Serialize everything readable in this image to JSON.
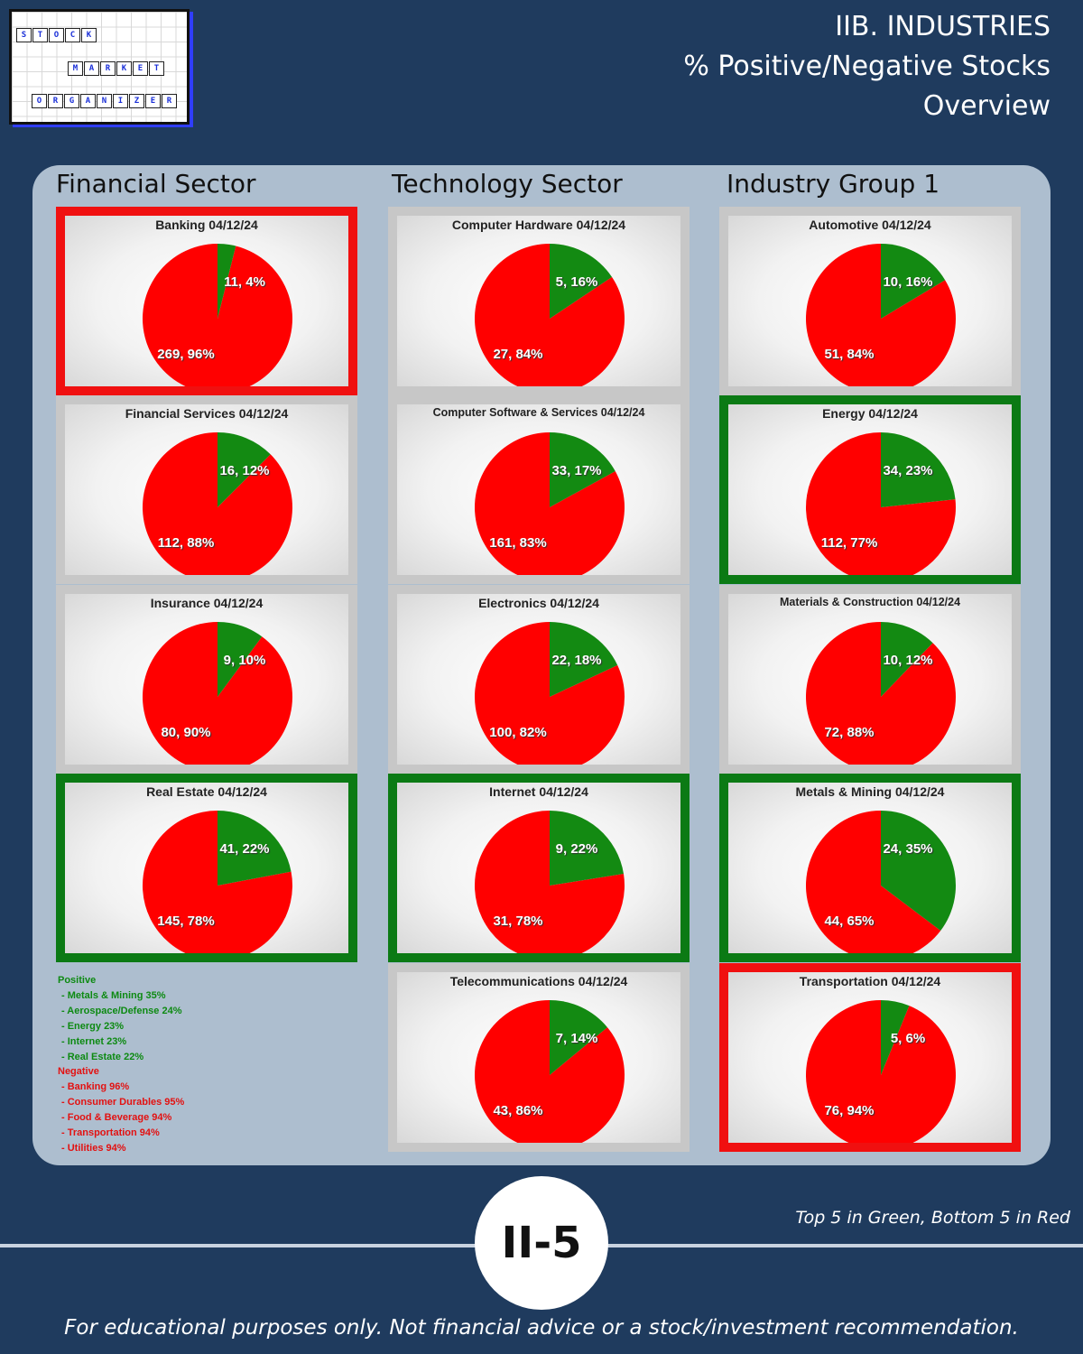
{
  "logo": {
    "row1": [
      "S",
      "T",
      "O",
      "C",
      "K"
    ],
    "row2": [
      "M",
      "A",
      "R",
      "K",
      "E",
      "T"
    ],
    "row3": [
      "O",
      "R",
      "G",
      "A",
      "N",
      "I",
      "Z",
      "E",
      "R"
    ]
  },
  "header": {
    "line1": "IIB. INDUSTRIES",
    "line2": "% Positive/Negative Stocks",
    "line3": "Overview"
  },
  "columns": [
    "Financial Sector",
    "Technology Sector",
    "Industry Group 1"
  ],
  "colors": {
    "positive": "#138a12",
    "negative": "#ff0000",
    "border_top5": "#0b7a14",
    "border_bottom5": "#f01010",
    "border_neutral": "#c7c7c7"
  },
  "chart_data": [
    {
      "type": "pie",
      "title": "Banking 04/12/24",
      "categories": [
        "Positive",
        "Negative"
      ],
      "values": [
        11,
        269
      ],
      "labels": [
        "11, 4%",
        "269, 96%"
      ],
      "highlight": "bottom5"
    },
    {
      "type": "pie",
      "title": "Financial Services 04/12/24",
      "categories": [
        "Positive",
        "Negative"
      ],
      "values": [
        16,
        112
      ],
      "labels": [
        "16, 12%",
        "112, 88%"
      ],
      "highlight": "none"
    },
    {
      "type": "pie",
      "title": "Insurance 04/12/24",
      "categories": [
        "Positive",
        "Negative"
      ],
      "values": [
        9,
        80
      ],
      "labels": [
        "9, 10%",
        "80, 90%"
      ],
      "highlight": "none"
    },
    {
      "type": "pie",
      "title": "Real Estate 04/12/24",
      "categories": [
        "Positive",
        "Negative"
      ],
      "values": [
        41,
        145
      ],
      "labels": [
        "41, 22%",
        "145, 78%"
      ],
      "highlight": "top5"
    },
    {
      "type": "pie",
      "title": "Computer Hardware 04/12/24",
      "categories": [
        "Positive",
        "Negative"
      ],
      "values": [
        5,
        27
      ],
      "labels": [
        "5, 16%",
        "27, 84%"
      ],
      "highlight": "none"
    },
    {
      "type": "pie",
      "title": "Computer Software & Services 04/12/24",
      "categories": [
        "Positive",
        "Negative"
      ],
      "values": [
        33,
        161
      ],
      "labels": [
        "33, 17%",
        "161, 83%"
      ],
      "highlight": "none"
    },
    {
      "type": "pie",
      "title": "Electronics 04/12/24",
      "categories": [
        "Positive",
        "Negative"
      ],
      "values": [
        22,
        100
      ],
      "labels": [
        "22, 18%",
        "100, 82%"
      ],
      "highlight": "none"
    },
    {
      "type": "pie",
      "title": "Internet 04/12/24",
      "categories": [
        "Positive",
        "Negative"
      ],
      "values": [
        9,
        31
      ],
      "labels": [
        "9, 22%",
        "31, 78%"
      ],
      "highlight": "top5"
    },
    {
      "type": "pie",
      "title": "Telecommunications 04/12/24",
      "categories": [
        "Positive",
        "Negative"
      ],
      "values": [
        7,
        43
      ],
      "labels": [
        "7, 14%",
        "43, 86%"
      ],
      "highlight": "none"
    },
    {
      "type": "pie",
      "title": "Automotive 04/12/24",
      "categories": [
        "Positive",
        "Negative"
      ],
      "values": [
        10,
        51
      ],
      "labels": [
        "10, 16%",
        "51, 84%"
      ],
      "highlight": "none"
    },
    {
      "type": "pie",
      "title": "Energy 04/12/24",
      "categories": [
        "Positive",
        "Negative"
      ],
      "values": [
        34,
        112
      ],
      "labels": [
        "34, 23%",
        "112, 77%"
      ],
      "highlight": "top5"
    },
    {
      "type": "pie",
      "title": "Materials & Construction 04/12/24",
      "categories": [
        "Positive",
        "Negative"
      ],
      "values": [
        10,
        72
      ],
      "labels": [
        "10, 12%",
        "72, 88%"
      ],
      "highlight": "none"
    },
    {
      "type": "pie",
      "title": "Metals & Mining 04/12/24",
      "categories": [
        "Positive",
        "Negative"
      ],
      "values": [
        24,
        44
      ],
      "labels": [
        "24, 35%",
        "44, 65%"
      ],
      "highlight": "top5"
    },
    {
      "type": "pie",
      "title": "Transportation 04/12/24",
      "categories": [
        "Positive",
        "Negative"
      ],
      "values": [
        5,
        76
      ],
      "labels": [
        "5, 6%",
        "76, 94%"
      ],
      "highlight": "bottom5"
    }
  ],
  "legend": {
    "positive_heading": "Positive",
    "positive_items": [
      "- Metals & Mining 35%",
      "- Aerospace/Defense 24%",
      "- Energy 23%",
      "- Internet 23%",
      "- Real Estate 22%"
    ],
    "negative_heading": "Negative",
    "negative_items": [
      "- Banking 96%",
      "- Consumer Durables 95%",
      "- Food & Beverage 94%",
      "- Transportation 94%",
      "- Utilities 94%"
    ]
  },
  "footer": {
    "note": "Top 5 in Green, Bottom 5 in Red",
    "badge": "II-5",
    "disclaimer": "For educational purposes only. Not financial advice or a stock/investment recommendation."
  }
}
